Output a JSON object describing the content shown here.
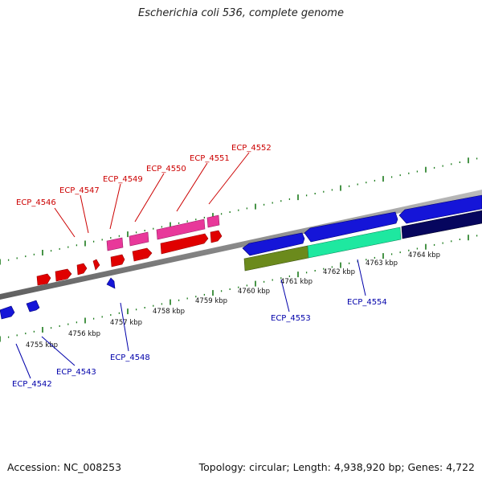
{
  "title": "Escherichia coli 536, complete genome",
  "footer": {
    "accession": "Accession: NC_008253",
    "summary": "Topology: circular; Length: 4,938,920 bp; Genes: 4,722"
  },
  "colors": {
    "forward_label": "#cc0000",
    "reverse_label": "#0000aa",
    "backbone": "#8a8a8a",
    "tick": "#1a7a1a"
  },
  "kbp_labels": [
    "4755 kbp",
    "4756 kbp",
    "4757 kbp",
    "4758 kbp",
    "4759 kbp",
    "4760 kbp",
    "4761 kbp",
    "4762 kbp",
    "4763 kbp",
    "4764 kbp"
  ],
  "gene_labels": {
    "top": [
      "ECP_4546",
      "ECP_4547",
      "ECP_4549",
      "ECP_4550",
      "ECP_4551",
      "ECP_4552"
    ],
    "bottom": [
      "ECP_4542",
      "ECP_4543",
      "ECP_4548",
      "ECP_4553",
      "ECP_4554"
    ]
  }
}
